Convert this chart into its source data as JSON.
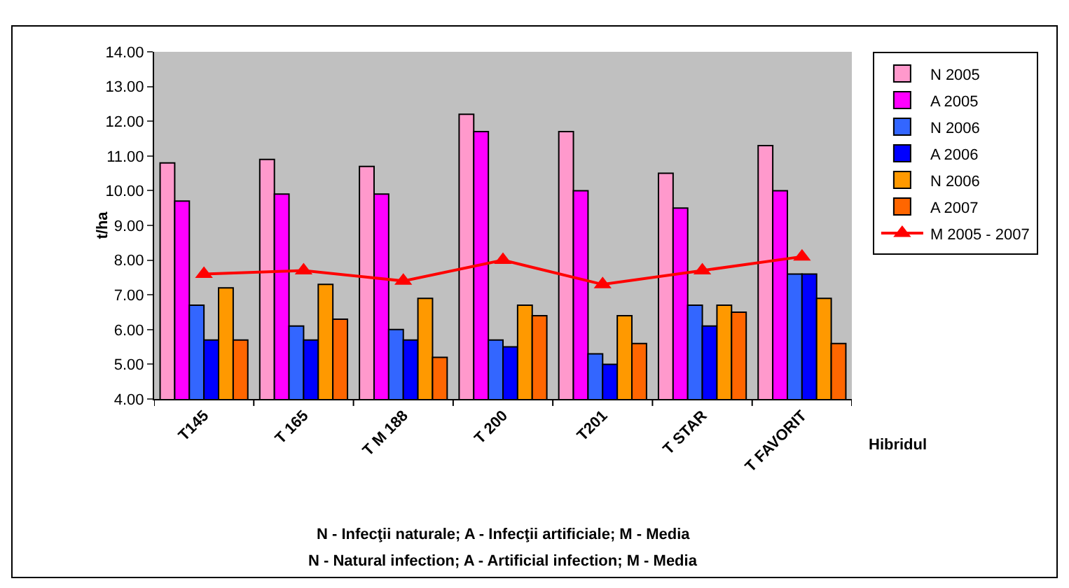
{
  "chart_data": {
    "type": "bar",
    "ylabel": "t/ha",
    "xlabel": "Hibridul",
    "categories": [
      "T145",
      "T 165",
      "T M 188",
      "T 200",
      "T201",
      "T STAR",
      "T FAVORIT"
    ],
    "series": [
      {
        "name": "N 2005",
        "color": "#ff99cc",
        "values": [
          10.8,
          10.9,
          10.7,
          12.2,
          11.7,
          10.5,
          11.3
        ]
      },
      {
        "name": "A 2005",
        "color": "#ff00ff",
        "values": [
          9.7,
          9.9,
          9.9,
          11.7,
          10.0,
          9.5,
          10.0
        ]
      },
      {
        "name": "N 2006",
        "color": "#3366ff",
        "values": [
          6.7,
          6.1,
          6.0,
          5.7,
          5.3,
          6.7,
          7.6
        ]
      },
      {
        "name": "A 2006",
        "color": "#0000ff",
        "values": [
          5.7,
          5.7,
          5.7,
          5.5,
          5.0,
          6.1,
          7.6
        ]
      },
      {
        "name": "N 2006",
        "color": "#ff9900",
        "values": [
          7.2,
          7.3,
          6.9,
          6.7,
          6.4,
          6.7,
          6.9
        ]
      },
      {
        "name": "A 2007",
        "color": "#ff6600",
        "values": [
          5.7,
          6.3,
          5.2,
          6.4,
          5.6,
          6.5,
          5.6
        ]
      },
      {
        "name": "M 2005 - 2007",
        "type": "line",
        "color": "#ff0000",
        "marker": "triangle",
        "values": [
          7.6,
          7.7,
          7.4,
          8.0,
          7.3,
          7.7,
          8.1
        ]
      }
    ],
    "ylim": [
      4,
      14
    ],
    "yticks": [
      {
        "value": 4,
        "label": "4.00"
      },
      {
        "value": 5,
        "label": "5.00"
      },
      {
        "value": 6,
        "label": "6.00"
      },
      {
        "value": 7,
        "label": "7.00"
      },
      {
        "value": 8,
        "label": "8.00"
      },
      {
        "value": 9,
        "label": "9.00"
      },
      {
        "value": 10,
        "label": "10.00"
      },
      {
        "value": 11,
        "label": "11.00"
      },
      {
        "value": 12,
        "label": "12.00"
      },
      {
        "value": 13,
        "label": "13.00"
      },
      {
        "value": 14,
        "label": "14.00"
      }
    ],
    "grid": false,
    "legend": "right",
    "annotations": [
      "N - Infecţii naturale; A - Infecţii artificiale; M - Media",
      "N - Natural infection; A - Artificial infection; M - Media"
    ]
  }
}
